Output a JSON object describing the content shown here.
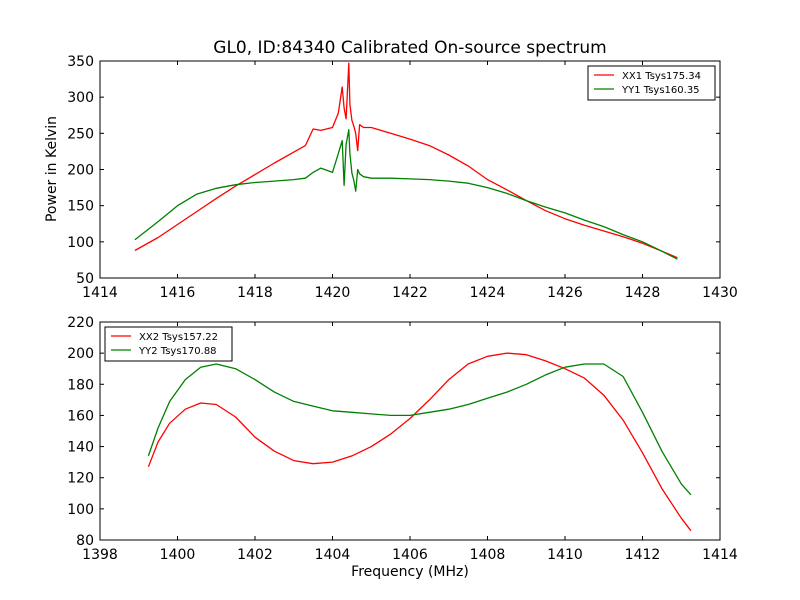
{
  "chart_data": [
    {
      "type": "line",
      "title": "GL0, ID:84340 Calibrated On-source spectrum",
      "xlabel": "",
      "ylabel": "Power in Kelvin",
      "xlim": [
        1414,
        1430
      ],
      "ylim": [
        50,
        350
      ],
      "xticks": [
        1414,
        1416,
        1418,
        1420,
        1422,
        1424,
        1426,
        1428,
        1430
      ],
      "yticks": [
        50,
        100,
        150,
        200,
        250,
        300,
        350
      ],
      "legend_position": "top-right",
      "series": [
        {
          "name": "XX1 Tsys175.34",
          "color": "#ff0000",
          "x": [
            1414.9,
            1415.5,
            1416.0,
            1416.5,
            1417.0,
            1417.5,
            1418.0,
            1418.5,
            1419.0,
            1419.3,
            1419.5,
            1419.7,
            1420.0,
            1420.15,
            1420.25,
            1420.3,
            1420.35,
            1420.42,
            1420.45,
            1420.5,
            1420.55,
            1420.6,
            1420.65,
            1420.7,
            1420.8,
            1421.0,
            1421.5,
            1422.0,
            1422.5,
            1423.0,
            1423.5,
            1424.0,
            1424.5,
            1425.0,
            1425.5,
            1426.0,
            1426.5,
            1427.0,
            1427.5,
            1428.0,
            1428.5,
            1428.9
          ],
          "y": [
            88,
            106,
            124,
            142,
            160,
            177,
            193,
            209,
            224,
            233,
            256,
            254,
            258,
            278,
            314,
            285,
            270,
            347,
            290,
            268,
            260,
            250,
            226,
            262,
            258,
            258,
            250,
            242,
            233,
            220,
            205,
            186,
            172,
            157,
            143,
            132,
            123,
            115,
            107,
            98,
            87,
            78
          ]
        },
        {
          "name": "YY1 Tsys160.35",
          "color": "#008000",
          "x": [
            1414.9,
            1415.5,
            1416.0,
            1416.5,
            1417.0,
            1417.5,
            1418.0,
            1418.5,
            1419.0,
            1419.3,
            1419.5,
            1419.7,
            1420.0,
            1420.15,
            1420.25,
            1420.3,
            1420.35,
            1420.42,
            1420.45,
            1420.5,
            1420.55,
            1420.6,
            1420.65,
            1420.7,
            1420.8,
            1421.0,
            1421.5,
            1422.0,
            1422.5,
            1423.0,
            1423.5,
            1424.0,
            1424.5,
            1425.0,
            1425.5,
            1426.0,
            1426.5,
            1427.0,
            1427.5,
            1428.0,
            1428.5,
            1428.9
          ],
          "y": [
            103,
            128,
            150,
            166,
            174,
            179,
            182,
            184,
            186,
            188,
            196,
            202,
            196,
            222,
            240,
            178,
            235,
            255,
            222,
            195,
            185,
            170,
            200,
            194,
            190,
            188,
            188,
            187,
            186,
            184,
            181,
            175,
            167,
            157,
            148,
            140,
            130,
            121,
            110,
            100,
            87,
            76
          ]
        }
      ]
    },
    {
      "type": "line",
      "title": "",
      "xlabel": "Frequency (MHz)",
      "ylabel": "",
      "xlim": [
        1398,
        1414
      ],
      "ylim": [
        80,
        220
      ],
      "xticks": [
        1398,
        1400,
        1402,
        1404,
        1406,
        1408,
        1410,
        1412,
        1414
      ],
      "yticks": [
        80,
        100,
        120,
        140,
        160,
        180,
        200,
        220
      ],
      "legend_position": "top-left",
      "series": [
        {
          "name": "XX2 Tsys157.22",
          "color": "#ff0000",
          "x": [
            1399.25,
            1399.5,
            1399.8,
            1400.2,
            1400.6,
            1401.0,
            1401.5,
            1402.0,
            1402.5,
            1403.0,
            1403.5,
            1404.0,
            1404.5,
            1405.0,
            1405.5,
            1406.0,
            1406.5,
            1407.0,
            1407.5,
            1408.0,
            1408.5,
            1409.0,
            1409.5,
            1410.0,
            1410.5,
            1411.0,
            1411.5,
            1412.0,
            1412.5,
            1413.0,
            1413.25
          ],
          "y": [
            127,
            143,
            155,
            164,
            168,
            167,
            159,
            146,
            137,
            131,
            129,
            130,
            134,
            140,
            148,
            158,
            170,
            183,
            193,
            198,
            200,
            199,
            195,
            190,
            184,
            173,
            157,
            136,
            113,
            94,
            86
          ]
        },
        {
          "name": "YY2 Tsys170.88",
          "color": "#008000",
          "x": [
            1399.25,
            1399.5,
            1399.8,
            1400.2,
            1400.6,
            1401.0,
            1401.5,
            1402.0,
            1402.5,
            1403.0,
            1403.5,
            1404.0,
            1404.5,
            1405.0,
            1405.5,
            1406.0,
            1406.5,
            1407.0,
            1407.5,
            1408.0,
            1408.5,
            1409.0,
            1409.5,
            1410.0,
            1410.5,
            1411.0,
            1411.5,
            1412.0,
            1412.5,
            1413.0,
            1413.25
          ],
          "y": [
            134,
            152,
            169,
            183,
            191,
            193,
            190,
            183,
            175,
            169,
            166,
            163,
            162,
            161,
            160,
            160,
            162,
            164,
            167,
            171,
            175,
            180,
            186,
            191,
            193,
            193,
            185,
            162,
            137,
            116,
            109
          ]
        }
      ]
    }
  ]
}
